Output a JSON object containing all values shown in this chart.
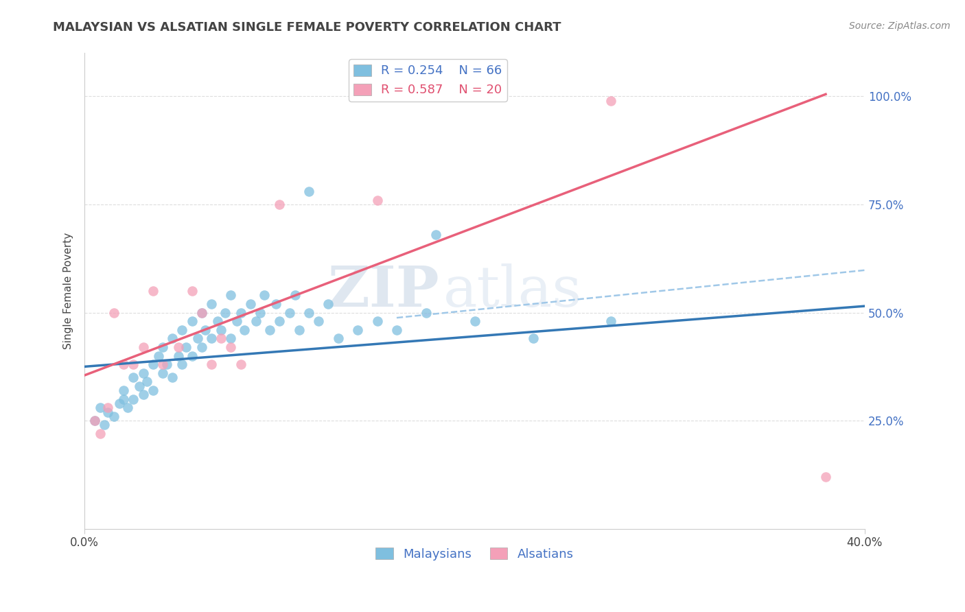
{
  "title": "MALAYSIAN VS ALSATIAN SINGLE FEMALE POVERTY CORRELATION CHART",
  "source": "Source: ZipAtlas.com",
  "ylabel": "Single Female Poverty",
  "xlim": [
    0.0,
    0.4
  ],
  "ylim": [
    0.0,
    1.1
  ],
  "blue_R": "R = 0.254",
  "blue_N": "N = 66",
  "pink_R": "R = 0.587",
  "pink_N": "N = 20",
  "legend_malaysians": "Malaysians",
  "legend_alsatians": "Alsatians",
  "blue_color": "#7fbfdf",
  "pink_color": "#f4a0b8",
  "blue_line_color": "#3478b5",
  "pink_line_color": "#e8607a",
  "dashed_line_color": "#a0c8e8",
  "watermark_zip": "ZIP",
  "watermark_atlas": "atlas",
  "blue_scatter_x": [
    0.005,
    0.008,
    0.01,
    0.012,
    0.015,
    0.018,
    0.02,
    0.022,
    0.02,
    0.025,
    0.025,
    0.028,
    0.03,
    0.03,
    0.032,
    0.035,
    0.035,
    0.038,
    0.04,
    0.04,
    0.042,
    0.045,
    0.045,
    0.048,
    0.05,
    0.05,
    0.052,
    0.055,
    0.055,
    0.058,
    0.06,
    0.06,
    0.062,
    0.065,
    0.065,
    0.068,
    0.07,
    0.072,
    0.075,
    0.075,
    0.078,
    0.08,
    0.082,
    0.085,
    0.088,
    0.09,
    0.092,
    0.095,
    0.098,
    0.1,
    0.105,
    0.108,
    0.11,
    0.115,
    0.12,
    0.125,
    0.13,
    0.14,
    0.15,
    0.16,
    0.175,
    0.2,
    0.23,
    0.27,
    0.115,
    0.18
  ],
  "blue_scatter_y": [
    0.25,
    0.28,
    0.24,
    0.27,
    0.26,
    0.29,
    0.3,
    0.28,
    0.32,
    0.3,
    0.35,
    0.33,
    0.31,
    0.36,
    0.34,
    0.38,
    0.32,
    0.4,
    0.36,
    0.42,
    0.38,
    0.35,
    0.44,
    0.4,
    0.38,
    0.46,
    0.42,
    0.4,
    0.48,
    0.44,
    0.42,
    0.5,
    0.46,
    0.44,
    0.52,
    0.48,
    0.46,
    0.5,
    0.44,
    0.54,
    0.48,
    0.5,
    0.46,
    0.52,
    0.48,
    0.5,
    0.54,
    0.46,
    0.52,
    0.48,
    0.5,
    0.54,
    0.46,
    0.5,
    0.48,
    0.52,
    0.44,
    0.46,
    0.48,
    0.46,
    0.5,
    0.48,
    0.44,
    0.48,
    0.78,
    0.68
  ],
  "pink_scatter_x": [
    0.005,
    0.008,
    0.012,
    0.015,
    0.02,
    0.025,
    0.03,
    0.035,
    0.04,
    0.048,
    0.055,
    0.06,
    0.065,
    0.07,
    0.075,
    0.08,
    0.1,
    0.15,
    0.27,
    0.38
  ],
  "pink_scatter_y": [
    0.25,
    0.22,
    0.28,
    0.5,
    0.38,
    0.38,
    0.42,
    0.55,
    0.38,
    0.42,
    0.55,
    0.5,
    0.38,
    0.44,
    0.42,
    0.38,
    0.75,
    0.76,
    0.99,
    0.12
  ],
  "blue_line_x": [
    0.0,
    0.4
  ],
  "blue_line_y": [
    0.375,
    0.515
  ],
  "pink_line_x": [
    0.0,
    0.38
  ],
  "pink_line_y": [
    0.355,
    1.005
  ],
  "dashed_line_x": [
    0.16,
    0.4
  ],
  "dashed_line_y": [
    0.488,
    0.598
  ],
  "ytick_positions": [
    0.25,
    0.5,
    0.75,
    1.0
  ],
  "ytick_labels": [
    "25.0%",
    "50.0%",
    "75.0%",
    "100.0%"
  ],
  "xtick_positions": [
    0.0,
    0.4
  ],
  "xtick_labels": [
    "0.0%",
    "40.0%"
  ],
  "grid_color": "#dddddd",
  "spine_color": "#cccccc",
  "label_color_blue": "#4472c4",
  "label_color_pink": "#e05070",
  "text_color": "#444444",
  "source_color": "#888888",
  "title_fontsize": 13,
  "axis_fontsize": 11,
  "tick_fontsize": 12,
  "legend_fontsize": 13
}
